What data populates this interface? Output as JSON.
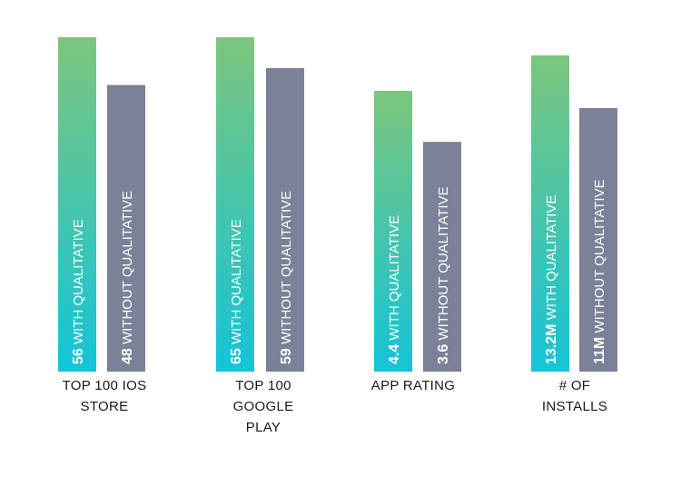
{
  "chart_data": {
    "type": "bar",
    "categories": [
      "TOP 100 IOS\nSTORE",
      "TOP 100\nGOOGLE\nPLAY",
      "APP RATING",
      "# OF\nINSTALLS"
    ],
    "series": [
      {
        "values": [
          56,
          65,
          4.4,
          13.2
        ],
        "labels": [
          {
            "value": "56",
            "text": " WITH QUALITATIVE"
          },
          {
            "value": "65",
            "text": " WITH QUALITATIVE"
          },
          {
            "value": "4.4",
            "text": " WITH QUALITATIVE"
          },
          {
            "value": "13.2M",
            "text": " WITH QUALITATIVE"
          }
        ]
      },
      {
        "values": [
          48,
          59,
          3.6,
          11
        ],
        "labels": [
          {
            "value": "48",
            "text": " WITHOUT QUALITATIVE"
          },
          {
            "value": "59",
            "text": " WITHOUT QUALITATIVE"
          },
          {
            "value": "3.6",
            "text": " WITHOUT QUALITATIVE"
          },
          {
            "value": "11M",
            "text": " WITHOUT QUALITATIVE"
          }
        ]
      }
    ],
    "colors": {
      "with_top": "#7cc67c",
      "with_bottom": "#14c4d8",
      "without": "#7a8198",
      "bar_text": "#ffffff"
    },
    "grid": false,
    "legend": "none"
  }
}
